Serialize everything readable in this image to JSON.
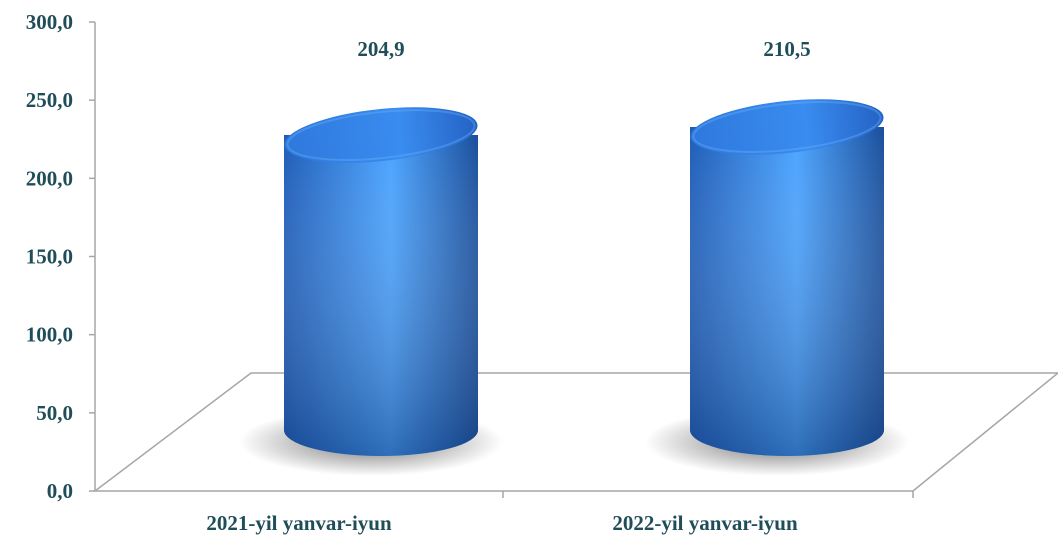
{
  "chart_data": {
    "type": "bar",
    "style": "3d-cylinder",
    "title": "",
    "xlabel": "",
    "ylabel": "",
    "categories": [
      "2021-yil yanvar-iyun",
      "2022-yil yanvar-iyun"
    ],
    "values": [
      204.9,
      210.5
    ],
    "value_labels": [
      "204,9",
      "210,5"
    ],
    "ylim": [
      0,
      300
    ],
    "yticks": [
      0,
      50,
      100,
      150,
      200,
      250,
      300
    ],
    "ytick_labels": [
      "0,0",
      "50,0",
      "100,0",
      "150,0",
      "200,0",
      "250,0",
      "300,0"
    ],
    "grid": false,
    "legend": "none",
    "colors": {
      "bar_light": "#5aa9ff",
      "bar_mid": "#2f7fe0",
      "bar_dark": "#1a4f9c",
      "text": "#1f4e5a",
      "axis": "#a6a6a6"
    }
  }
}
